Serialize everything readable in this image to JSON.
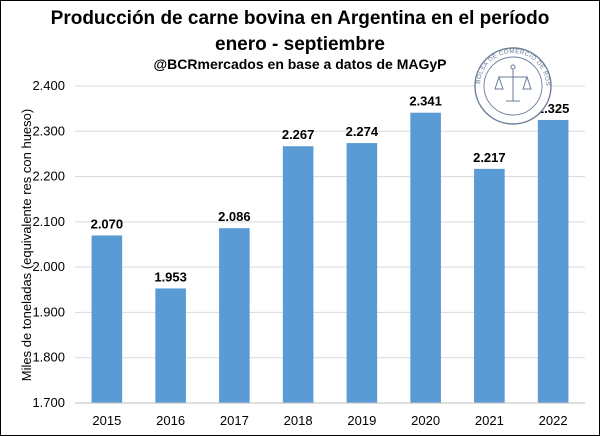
{
  "header": {
    "title_line1": "Producción de carne bovina en Argentina en el período",
    "title_line2": "enero - septiembre",
    "subtitle": "@BCRmercados en base a datos de MAGyP"
  },
  "logo": {
    "name": "bcr-seal-logo",
    "text": "BOLSA DE COMERCIO DE ROSARIO"
  },
  "chart_data": {
    "type": "bar",
    "title": "Producción de carne bovina en Argentina en el período enero - septiembre",
    "subtitle": "@BCRmercados en base a datos de MAGyP",
    "xlabel": "",
    "ylabel": "Miles de toneladas (equivalente res con hueso)",
    "categories": [
      "2015",
      "2016",
      "2017",
      "2018",
      "2019",
      "2020",
      "2021",
      "2022"
    ],
    "values": [
      2070,
      1953,
      2086,
      2267,
      2274,
      2341,
      2217,
      2325
    ],
    "data_labels": [
      "2.070",
      "1.953",
      "2.086",
      "2.267",
      "2.274",
      "2.341",
      "2.217",
      "2.325"
    ],
    "ylim": [
      1700,
      2400
    ],
    "yticks": [
      1700,
      1800,
      1900,
      2000,
      2100,
      2200,
      2300,
      2400
    ],
    "ytick_labels": [
      "1.700",
      "1.800",
      "1.900",
      "2.000",
      "2.100",
      "2.200",
      "2.300",
      "2.400"
    ],
    "grid": true,
    "legend": "none",
    "bar_color": "#5b9bd5",
    "grid_color": "#d9d9d9"
  }
}
